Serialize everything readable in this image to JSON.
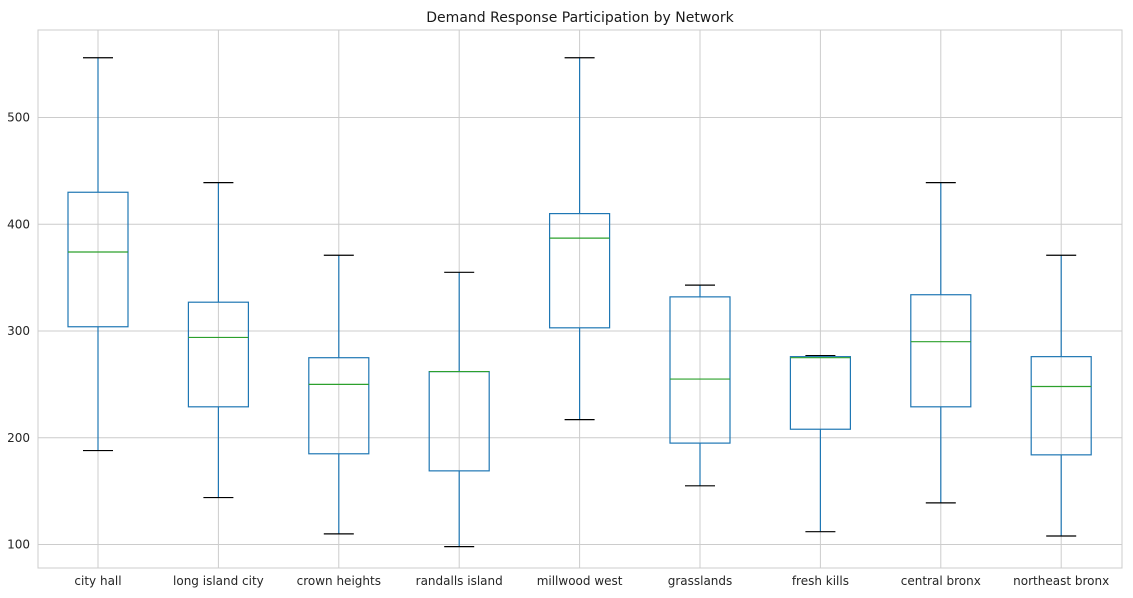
{
  "chart_data": {
    "type": "boxplot",
    "title": "Demand Response Participation by Network",
    "xlabel": "",
    "ylabel": "",
    "ylim": [
      78,
      582
    ],
    "yticks": [
      100,
      200,
      300,
      400,
      500
    ],
    "grid": true,
    "categories": [
      "city hall",
      "long island city",
      "crown heights",
      "randalls island",
      "millwood west",
      "grasslands",
      "fresh kills",
      "central bronx",
      "northeast bronx"
    ],
    "boxes": [
      {
        "whisker_low": 188,
        "q1": 304,
        "median": 374,
        "q3": 430,
        "whisker_high": 556
      },
      {
        "whisker_low": 144,
        "q1": 229,
        "median": 294,
        "q3": 327,
        "whisker_high": 439
      },
      {
        "whisker_low": 110,
        "q1": 185,
        "median": 250,
        "q3": 275,
        "whisker_high": 371
      },
      {
        "whisker_low": 98,
        "q1": 169,
        "median": 262,
        "q3": 262,
        "whisker_high": 355
      },
      {
        "whisker_low": 217,
        "q1": 303,
        "median": 387,
        "q3": 410,
        "whisker_high": 556
      },
      {
        "whisker_low": 155,
        "q1": 195,
        "median": 255,
        "q3": 332,
        "whisker_high": 343
      },
      {
        "whisker_low": 112,
        "q1": 208,
        "median": 275,
        "q3": 276,
        "whisker_high": 277
      },
      {
        "whisker_low": 139,
        "q1": 229,
        "median": 290,
        "q3": 334,
        "whisker_high": 439
      },
      {
        "whisker_low": 108,
        "q1": 184,
        "median": 248,
        "q3": 276,
        "whisker_high": 371
      }
    ],
    "colors": {
      "box": "#1f77b4",
      "median": "#2ca02c",
      "cap": "#000000",
      "grid": "#cccccc",
      "frame": "#cccccc"
    }
  }
}
